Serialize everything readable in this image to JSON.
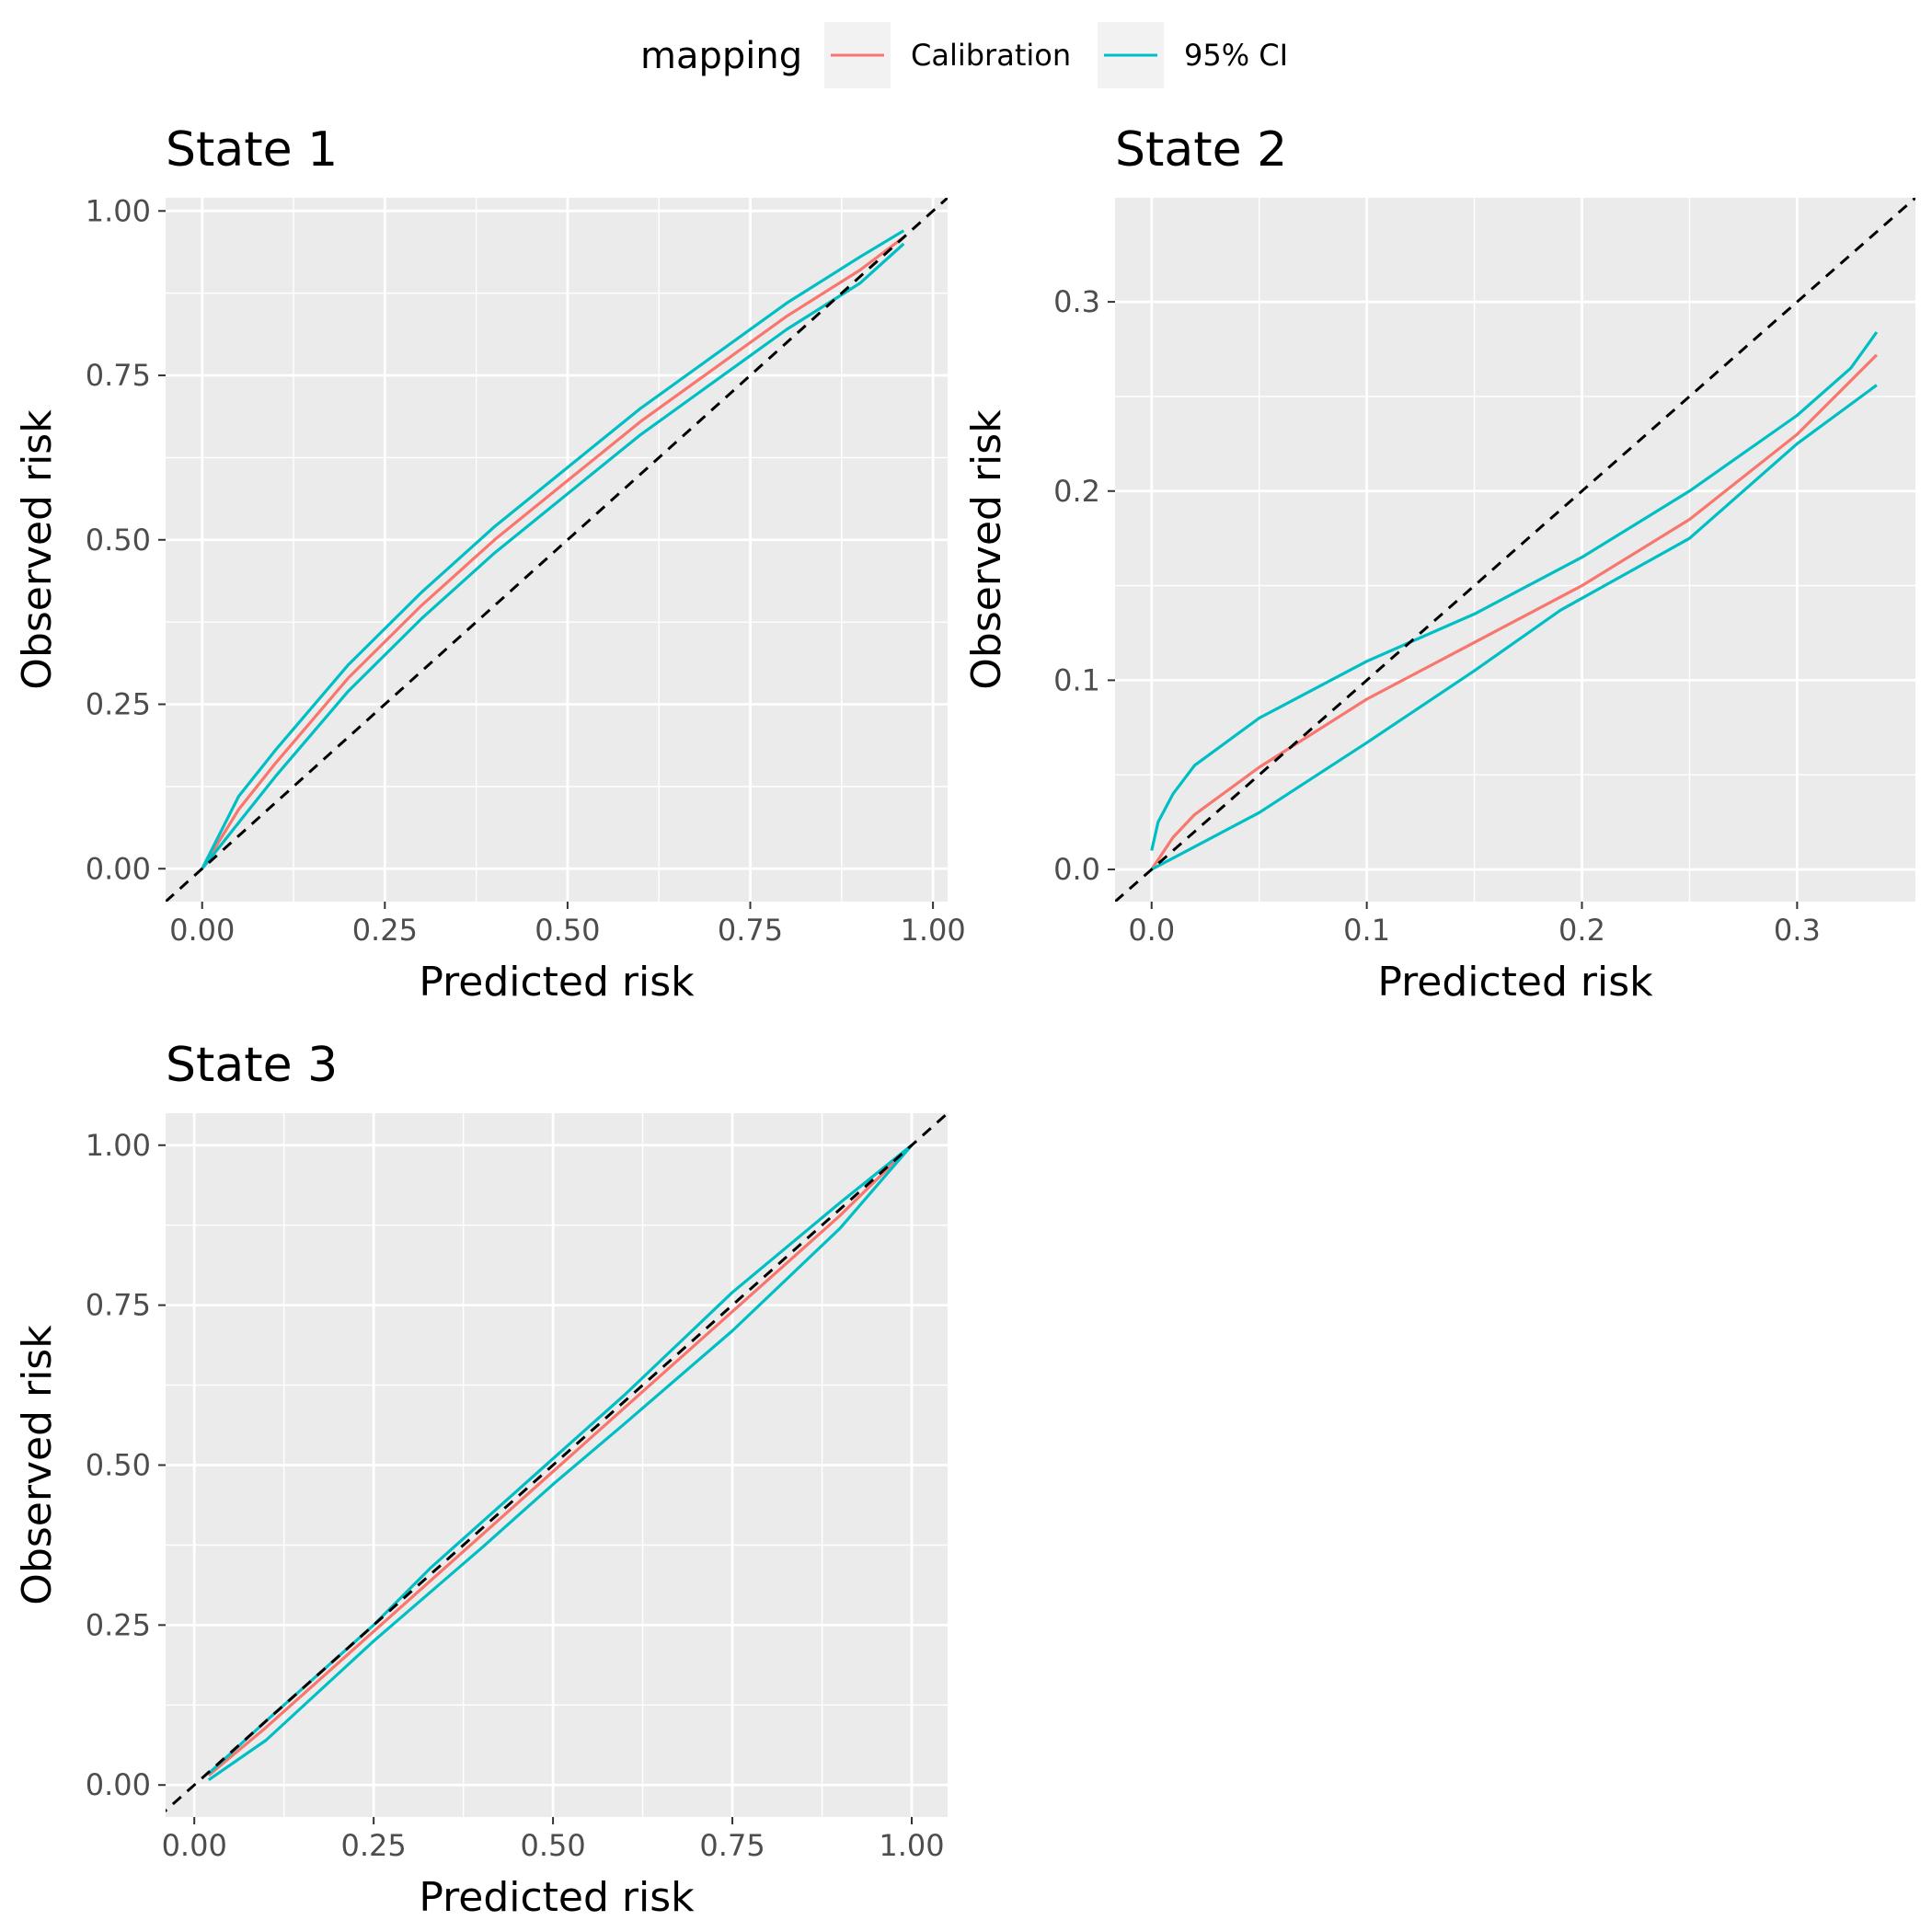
{
  "legend": {
    "title": "mapping",
    "items": [
      {
        "label": "Calibration",
        "color": "#F8766D"
      },
      {
        "label": "95% CI",
        "color": "#00BFC4"
      }
    ]
  },
  "chart_data": [
    {
      "type": "line",
      "title": "State 1",
      "xlabel": "Predicted risk",
      "ylabel": "Observed risk",
      "xlim": [
        -0.05,
        1.02
      ],
      "ylim": [
        -0.05,
        1.02
      ],
      "xticks": [
        0,
        0.25,
        0.5,
        0.75,
        1
      ],
      "xtick_labels": [
        "0.00",
        "0.25",
        "0.50",
        "0.75",
        "1.00"
      ],
      "yticks": [
        0,
        0.25,
        0.5,
        0.75,
        1
      ],
      "ytick_labels": [
        "0.00",
        "0.25",
        "0.50",
        "0.75",
        "1.00"
      ],
      "grid": true,
      "reference_line": "y = x (dashed)",
      "series": [
        {
          "name": "Calibration",
          "color": "#F8766D",
          "x": [
            0,
            0.05,
            0.1,
            0.2,
            0.3,
            0.4,
            0.5,
            0.6,
            0.7,
            0.8,
            0.9,
            0.96
          ],
          "y": [
            0,
            0.09,
            0.16,
            0.29,
            0.4,
            0.5,
            0.59,
            0.68,
            0.76,
            0.84,
            0.91,
            0.96
          ]
        },
        {
          "name": "95% CI",
          "color": "#00BFC4",
          "x": [
            0,
            0.05,
            0.1,
            0.2,
            0.3,
            0.4,
            0.5,
            0.6,
            0.7,
            0.8,
            0.9,
            0.96
          ],
          "y": [
            0,
            0.11,
            0.18,
            0.31,
            0.42,
            0.52,
            0.61,
            0.7,
            0.78,
            0.86,
            0.93,
            0.97
          ]
        },
        {
          "name": "95% CI",
          "color": "#00BFC4",
          "x": [
            0,
            0.05,
            0.1,
            0.2,
            0.3,
            0.4,
            0.5,
            0.6,
            0.7,
            0.8,
            0.9,
            0.96
          ],
          "y": [
            0,
            0.07,
            0.14,
            0.27,
            0.38,
            0.48,
            0.57,
            0.66,
            0.74,
            0.82,
            0.89,
            0.95
          ]
        }
      ]
    },
    {
      "type": "line",
      "title": "State 2",
      "xlabel": "Predicted risk",
      "ylabel": "Observed risk",
      "xlim": [
        -0.017,
        0.355
      ],
      "ylim": [
        -0.017,
        0.355
      ],
      "xticks": [
        0,
        0.1,
        0.2,
        0.3
      ],
      "xtick_labels": [
        "0.0",
        "0.1",
        "0.2",
        "0.3"
      ],
      "yticks": [
        0,
        0.1,
        0.2,
        0.3
      ],
      "ytick_labels": [
        "0.0",
        "0.1",
        "0.2",
        "0.3"
      ],
      "grid": true,
      "reference_line": "y = x (dashed)",
      "series": [
        {
          "name": "Calibration",
          "color": "#F8766D",
          "x": [
            0,
            0.01,
            0.02,
            0.05,
            0.1,
            0.15,
            0.2,
            0.25,
            0.3,
            0.337
          ],
          "y": [
            0,
            0.017,
            0.029,
            0.054,
            0.09,
            0.12,
            0.15,
            0.185,
            0.23,
            0.272
          ]
        },
        {
          "name": "95% CI",
          "color": "#00BFC4",
          "x": [
            0,
            0.003,
            0.01,
            0.02,
            0.05,
            0.1,
            0.15,
            0.2,
            0.25,
            0.3,
            0.325,
            0.337
          ],
          "y": [
            0.01,
            0.025,
            0.04,
            0.055,
            0.08,
            0.11,
            0.135,
            0.165,
            0.2,
            0.24,
            0.265,
            0.284
          ]
        },
        {
          "name": "95% CI",
          "color": "#00BFC4",
          "x": [
            0,
            0.05,
            0.1,
            0.15,
            0.19,
            0.25,
            0.3,
            0.337
          ],
          "y": [
            0,
            0.03,
            0.067,
            0.105,
            0.137,
            0.175,
            0.225,
            0.256
          ]
        }
      ]
    },
    {
      "type": "line",
      "title": "State 3",
      "xlabel": "Predicted risk",
      "ylabel": "Observed risk",
      "xlim": [
        -0.04,
        1.05
      ],
      "ylim": [
        -0.05,
        1.05
      ],
      "xticks": [
        0,
        0.25,
        0.5,
        0.75,
        1
      ],
      "xtick_labels": [
        "0.00",
        "0.25",
        "0.50",
        "0.75",
        "1.00"
      ],
      "yticks": [
        0,
        0.25,
        0.5,
        0.75,
        1
      ],
      "ytick_labels": [
        "0.00",
        "0.25",
        "0.50",
        "0.75",
        "1.00"
      ],
      "grid": true,
      "reference_line": "y = x (dashed)",
      "series": [
        {
          "name": "Calibration",
          "color": "#F8766D",
          "x": [
            0.02,
            0.1,
            0.25,
            0.4,
            0.5,
            0.6,
            0.75,
            0.9,
            1
          ],
          "y": [
            0.015,
            0.09,
            0.24,
            0.39,
            0.49,
            0.59,
            0.74,
            0.89,
            1
          ]
        },
        {
          "name": "95% CI",
          "color": "#00BFC4",
          "x": [
            0.02,
            0.1,
            0.25,
            0.33,
            0.4,
            0.5,
            0.6,
            0.75,
            0.9,
            1
          ],
          "y": [
            0.018,
            0.1,
            0.25,
            0.34,
            0.41,
            0.51,
            0.61,
            0.77,
            0.91,
            1
          ]
        },
        {
          "name": "95% CI",
          "color": "#00BFC4",
          "x": [
            0.02,
            0.1,
            0.25,
            0.4,
            0.5,
            0.6,
            0.75,
            0.9,
            1
          ],
          "y": [
            0.008,
            0.07,
            0.225,
            0.37,
            0.47,
            0.565,
            0.71,
            0.87,
            1
          ]
        }
      ]
    }
  ]
}
